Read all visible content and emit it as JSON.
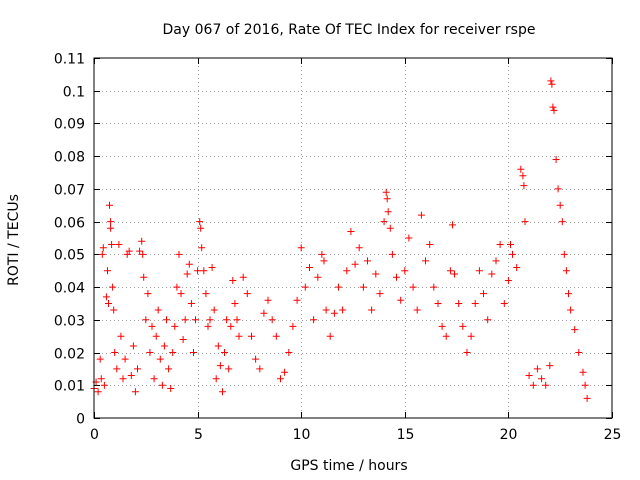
{
  "chart_data": {
    "type": "scatter",
    "title": "Day 067 of 2016, Rate Of TEC Index for receiver rspe",
    "xlabel": "GPS time / hours",
    "ylabel": "ROTI / TECUs",
    "xlim": [
      0,
      25
    ],
    "ylim": [
      0,
      0.11
    ],
    "xticks": [
      0,
      5,
      10,
      15,
      20,
      25
    ],
    "xtick_labels": [
      "0",
      "5",
      "10",
      "15",
      "20",
      "25"
    ],
    "yticks": [
      0,
      0.01,
      0.02,
      0.03,
      0.04,
      0.05,
      0.06,
      0.07,
      0.08,
      0.09,
      0.1,
      0.11
    ],
    "ytick_labels": [
      "0",
      "0.01",
      "0.02",
      "0.03",
      "0.04",
      "0.05",
      "0.06",
      "0.07",
      "0.08",
      "0.09",
      "0.1",
      "0.11"
    ],
    "grid": true,
    "marker": "+",
    "marker_color": "#ff0000",
    "series": [
      {
        "name": "ROTI",
        "points": [
          [
            0.0,
            0.009
          ],
          [
            0.1,
            0.011
          ],
          [
            0.2,
            0.008
          ],
          [
            0.3,
            0.018
          ],
          [
            0.35,
            0.012
          ],
          [
            0.4,
            0.05
          ],
          [
            0.45,
            0.052
          ],
          [
            0.5,
            0.01
          ],
          [
            0.6,
            0.037
          ],
          [
            0.65,
            0.045
          ],
          [
            0.7,
            0.035
          ],
          [
            0.75,
            0.065
          ],
          [
            0.8,
            0.06
          ],
          [
            0.8,
            0.058
          ],
          [
            0.85,
            0.053
          ],
          [
            0.9,
            0.04
          ],
          [
            0.95,
            0.033
          ],
          [
            1.0,
            0.02
          ],
          [
            1.1,
            0.015
          ],
          [
            1.2,
            0.053
          ],
          [
            1.3,
            0.025
          ],
          [
            1.4,
            0.012
          ],
          [
            1.5,
            0.018
          ],
          [
            1.6,
            0.05
          ],
          [
            1.7,
            0.051
          ],
          [
            1.8,
            0.013
          ],
          [
            1.9,
            0.022
          ],
          [
            2.0,
            0.008
          ],
          [
            2.1,
            0.015
          ],
          [
            2.2,
            0.051
          ],
          [
            2.3,
            0.054
          ],
          [
            2.35,
            0.05
          ],
          [
            2.4,
            0.043
          ],
          [
            2.5,
            0.03
          ],
          [
            2.6,
            0.038
          ],
          [
            2.7,
            0.02
          ],
          [
            2.8,
            0.028
          ],
          [
            2.9,
            0.012
          ],
          [
            3.0,
            0.025
          ],
          [
            3.1,
            0.033
          ],
          [
            3.2,
            0.018
          ],
          [
            3.3,
            0.01
          ],
          [
            3.4,
            0.022
          ],
          [
            3.5,
            0.03
          ],
          [
            3.6,
            0.015
          ],
          [
            3.7,
            0.009
          ],
          [
            3.8,
            0.02
          ],
          [
            3.9,
            0.028
          ],
          [
            4.0,
            0.04
          ],
          [
            4.1,
            0.05
          ],
          [
            4.2,
            0.038
          ],
          [
            4.3,
            0.024
          ],
          [
            4.4,
            0.03
          ],
          [
            4.5,
            0.044
          ],
          [
            4.6,
            0.047
          ],
          [
            4.7,
            0.035
          ],
          [
            4.8,
            0.02
          ],
          [
            4.9,
            0.03
          ],
          [
            5.0,
            0.045
          ],
          [
            5.1,
            0.06
          ],
          [
            5.15,
            0.058
          ],
          [
            5.2,
            0.052
          ],
          [
            5.3,
            0.045
          ],
          [
            5.4,
            0.038
          ],
          [
            5.5,
            0.028
          ],
          [
            5.6,
            0.03
          ],
          [
            5.7,
            0.046
          ],
          [
            5.8,
            0.033
          ],
          [
            5.9,
            0.012
          ],
          [
            6.0,
            0.022
          ],
          [
            6.1,
            0.016
          ],
          [
            6.2,
            0.008
          ],
          [
            6.3,
            0.02
          ],
          [
            6.4,
            0.03
          ],
          [
            6.5,
            0.015
          ],
          [
            6.6,
            0.028
          ],
          [
            6.7,
            0.042
          ],
          [
            6.8,
            0.035
          ],
          [
            6.9,
            0.03
          ],
          [
            7.0,
            0.025
          ],
          [
            7.2,
            0.043
          ],
          [
            7.4,
            0.038
          ],
          [
            7.6,
            0.025
          ],
          [
            7.8,
            0.018
          ],
          [
            8.0,
            0.015
          ],
          [
            8.2,
            0.032
          ],
          [
            8.4,
            0.036
          ],
          [
            8.6,
            0.03
          ],
          [
            8.8,
            0.025
          ],
          [
            9.0,
            0.012
          ],
          [
            9.2,
            0.014
          ],
          [
            9.4,
            0.02
          ],
          [
            9.6,
            0.028
          ],
          [
            9.8,
            0.036
          ],
          [
            10.0,
            0.052
          ],
          [
            10.2,
            0.04
          ],
          [
            10.4,
            0.046
          ],
          [
            10.6,
            0.03
          ],
          [
            10.8,
            0.043
          ],
          [
            11.0,
            0.05
          ],
          [
            11.1,
            0.048
          ],
          [
            11.2,
            0.033
          ],
          [
            11.4,
            0.025
          ],
          [
            11.6,
            0.032
          ],
          [
            11.8,
            0.04
          ],
          [
            12.0,
            0.033
          ],
          [
            12.2,
            0.045
          ],
          [
            12.4,
            0.057
          ],
          [
            12.6,
            0.047
          ],
          [
            12.8,
            0.052
          ],
          [
            13.0,
            0.04
          ],
          [
            13.2,
            0.048
          ],
          [
            13.4,
            0.033
          ],
          [
            13.6,
            0.044
          ],
          [
            13.8,
            0.038
          ],
          [
            14.0,
            0.06
          ],
          [
            14.1,
            0.069
          ],
          [
            14.15,
            0.067
          ],
          [
            14.2,
            0.063
          ],
          [
            14.3,
            0.058
          ],
          [
            14.4,
            0.05
          ],
          [
            14.6,
            0.043
          ],
          [
            14.8,
            0.036
          ],
          [
            15.0,
            0.045
          ],
          [
            15.2,
            0.055
          ],
          [
            15.4,
            0.04
          ],
          [
            15.6,
            0.033
          ],
          [
            15.8,
            0.062
          ],
          [
            16.0,
            0.048
          ],
          [
            16.2,
            0.053
          ],
          [
            16.4,
            0.04
          ],
          [
            16.6,
            0.035
          ],
          [
            16.8,
            0.028
          ],
          [
            17.0,
            0.025
          ],
          [
            17.2,
            0.045
          ],
          [
            17.3,
            0.059
          ],
          [
            17.4,
            0.044
          ],
          [
            17.6,
            0.035
          ],
          [
            17.8,
            0.028
          ],
          [
            18.0,
            0.02
          ],
          [
            18.2,
            0.025
          ],
          [
            18.4,
            0.035
          ],
          [
            18.6,
            0.045
          ],
          [
            18.8,
            0.038
          ],
          [
            19.0,
            0.03
          ],
          [
            19.2,
            0.044
          ],
          [
            19.4,
            0.048
          ],
          [
            19.6,
            0.053
          ],
          [
            19.8,
            0.035
          ],
          [
            20.0,
            0.042
          ],
          [
            20.1,
            0.053
          ],
          [
            20.2,
            0.05
          ],
          [
            20.4,
            0.046
          ],
          [
            20.6,
            0.076
          ],
          [
            20.7,
            0.074
          ],
          [
            20.75,
            0.071
          ],
          [
            20.8,
            0.06
          ],
          [
            21.0,
            0.013
          ],
          [
            21.2,
            0.01
          ],
          [
            21.4,
            0.015
          ],
          [
            21.6,
            0.012
          ],
          [
            21.8,
            0.01
          ],
          [
            22.0,
            0.016
          ],
          [
            22.05,
            0.103
          ],
          [
            22.1,
            0.102
          ],
          [
            22.15,
            0.095
          ],
          [
            22.2,
            0.094
          ],
          [
            22.3,
            0.079
          ],
          [
            22.4,
            0.07
          ],
          [
            22.5,
            0.065
          ],
          [
            22.6,
            0.06
          ],
          [
            22.7,
            0.05
          ],
          [
            22.8,
            0.045
          ],
          [
            22.9,
            0.038
          ],
          [
            23.0,
            0.033
          ],
          [
            23.2,
            0.027
          ],
          [
            23.4,
            0.02
          ],
          [
            23.6,
            0.014
          ],
          [
            23.7,
            0.01
          ],
          [
            23.8,
            0.006
          ]
        ]
      }
    ]
  }
}
